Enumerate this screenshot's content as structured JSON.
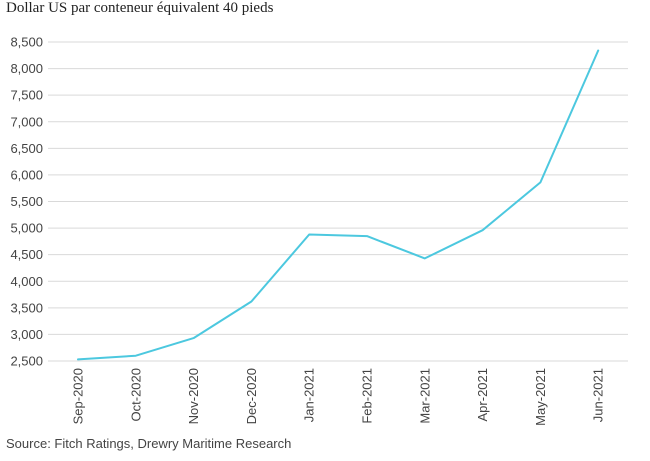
{
  "chart_data": {
    "type": "line",
    "title": "Dollar US par conteneur équivalent 40 pieds",
    "source": "Source: Fitch Ratings, Drewry Maritime Research",
    "categories": [
      "Sep-2020",
      "Oct-2020",
      "Nov-2020",
      "Dec-2020",
      "Jan-2021",
      "Feb-2021",
      "Mar-2021",
      "Apr-2021",
      "May-2021",
      "Jun-2021"
    ],
    "series": [
      {
        "values": [
          2530,
          2600,
          2930,
          3620,
          4880,
          4850,
          4430,
          4960,
          5860,
          8340
        ],
        "color": "#4cc8df"
      }
    ],
    "ylim": [
      2500,
      8500
    ],
    "yticks": [
      2500,
      3000,
      3500,
      4000,
      4500,
      5000,
      5500,
      6000,
      6500,
      7000,
      7500,
      8000,
      8500
    ],
    "ytick_labels": [
      "2,500",
      "3,000",
      "3,500",
      "4,000",
      "4,500",
      "5,000",
      "5,500",
      "6,000",
      "6,500",
      "7,000",
      "7,500",
      "8,000",
      "8,500"
    ],
    "grid": true,
    "legend": false
  }
}
